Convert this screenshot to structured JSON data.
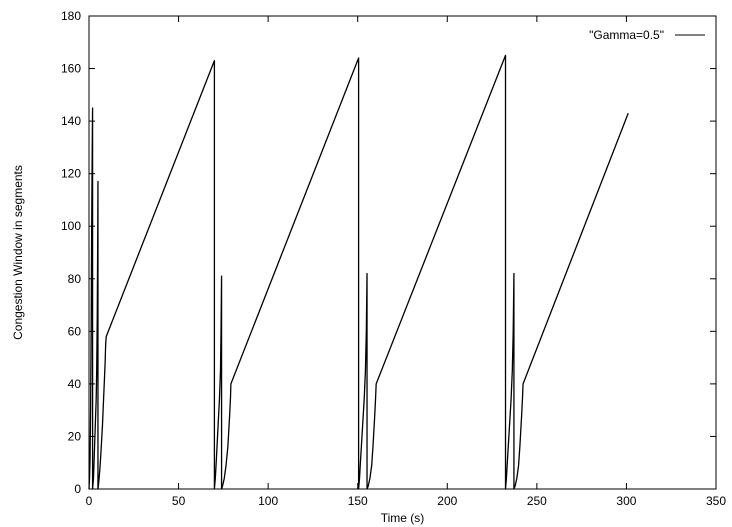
{
  "chart_data": {
    "type": "line",
    "title": "",
    "xlabel": "Time (s)",
    "ylabel": "Congestion Window in segments",
    "xlim": [
      0,
      350
    ],
    "ylim": [
      0,
      180
    ],
    "xticks": [
      0,
      50,
      100,
      150,
      200,
      250,
      300,
      350
    ],
    "yticks": [
      0,
      20,
      40,
      60,
      80,
      100,
      120,
      140,
      160,
      180
    ],
    "grid": false,
    "legend_position": "top-right",
    "line_color": "#000000",
    "series": [
      {
        "name": "\"Gamma=0.5\"",
        "x": [
          0,
          0.3,
          0.6,
          0.9,
          1.2,
          1.5,
          1.8,
          2.0,
          2.0,
          2.5,
          2.8,
          3.2,
          3.6,
          4.0,
          4.3,
          4.6,
          4.9,
          5.0,
          5.0,
          5.2,
          5.5,
          6.0,
          6.5,
          7.0,
          7.5,
          8.0,
          8.5,
          9.0,
          9.3,
          9.6,
          70.0,
          70.0,
          70.5,
          71.0,
          71.6,
          72.2,
          72.8,
          73.4,
          73.7,
          74.0,
          74.0,
          74.5,
          75.5,
          76.5,
          77.5,
          78.0,
          78.5,
          79.0,
          79.2,
          150.5,
          150.5,
          151.0,
          151.5,
          152.2,
          152.9,
          153.6,
          154.3,
          154.8,
          155.2,
          155.2,
          155.8,
          156.8,
          157.8,
          158.5,
          159.0,
          159.5,
          160.0,
          160.3,
          232.5,
          232.5,
          233.0,
          233.5,
          234.2,
          234.9,
          235.6,
          236.3,
          236.8,
          237.2,
          237.2,
          237.8,
          238.8,
          239.8,
          240.5,
          241.0,
          241.5,
          242.0,
          242.3,
          301.0
        ],
        "y": [
          0,
          4,
          12,
          30,
          60,
          100,
          130,
          145,
          0,
          4,
          10,
          18,
          26,
          34,
          45,
          65,
          100,
          117,
          0,
          1,
          3,
          7,
          12,
          18,
          24,
          32,
          40,
          48,
          55,
          58,
          163,
          0,
          4,
          10,
          18,
          26,
          34,
          45,
          60,
          81,
          0,
          1,
          4,
          9,
          16,
          22,
          28,
          35,
          40,
          164,
          0,
          4,
          10,
          18,
          26,
          34,
          45,
          60,
          82,
          0,
          1,
          4,
          9,
          16,
          22,
          28,
          35,
          40,
          165,
          0,
          4,
          10,
          18,
          26,
          34,
          45,
          60,
          82,
          0,
          1,
          4,
          9,
          16,
          22,
          28,
          35,
          40,
          143
        ]
      }
    ]
  }
}
